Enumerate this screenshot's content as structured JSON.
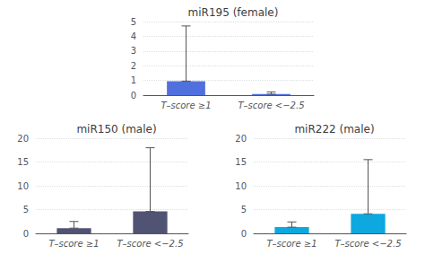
{
  "chart_data": [
    {
      "type": "bar",
      "title": "miR195 (female)",
      "categories": [
        "T–score ≥1",
        "T–score <−2.5"
      ],
      "values": [
        0.95,
        0.07
      ],
      "error_upper": [
        4.7,
        0.22
      ],
      "ylim": [
        0,
        5
      ],
      "yticks": [
        0,
        1,
        2,
        3,
        4,
        5
      ],
      "grid": true
    },
    {
      "type": "bar",
      "title": "miR150 (male)",
      "categories": [
        "T–score ≥1",
        "T–score <−2.5"
      ],
      "values": [
        1.1,
        4.6
      ],
      "error_upper": [
        2.5,
        18.0
      ],
      "ylim": [
        0,
        20
      ],
      "yticks": [
        0,
        5,
        10,
        15,
        20
      ],
      "grid": true
    },
    {
      "type": "bar",
      "title": "miR222 (male)",
      "categories": [
        "T–score ≥1",
        "T–score <−2.5"
      ],
      "values": [
        1.3,
        4.1
      ],
      "error_upper": [
        2.4,
        15.5
      ],
      "ylim": [
        0,
        20
      ],
      "yticks": [
        0,
        5,
        10,
        15,
        20
      ],
      "grid": true
    }
  ]
}
